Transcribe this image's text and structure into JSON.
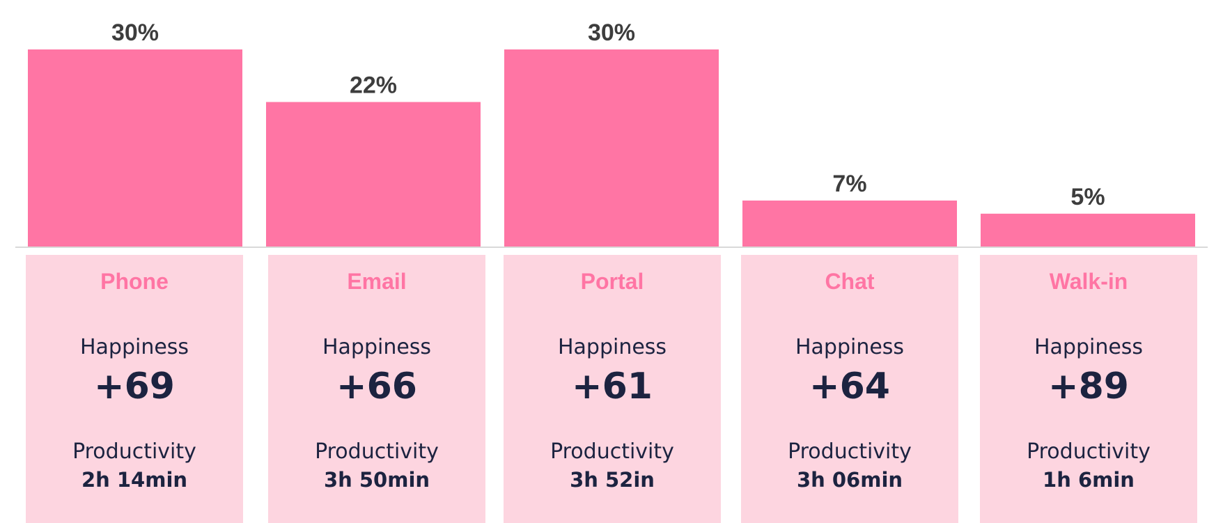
{
  "colors": {
    "bar": "#ff75a4",
    "card_bg": "#fdd5e0",
    "card_title": "#ff75a4",
    "value_label": "#3d3d3d",
    "metric_text": "#1c2340",
    "baseline": "#d9d9d9"
  },
  "chart_data": {
    "type": "bar",
    "categories": [
      "Phone",
      "Email",
      "Portal",
      "Chat",
      "Walk-in"
    ],
    "values": [
      30,
      22,
      30,
      7,
      5
    ],
    "value_labels": [
      "30%",
      "22%",
      "30%",
      "7%",
      "5%"
    ],
    "unit": "%",
    "ylim": [
      0,
      30
    ],
    "grid": false,
    "legend": "none"
  },
  "cards": [
    {
      "name": "Phone",
      "happiness_label": "Happiness",
      "happiness_value": "+69",
      "productivity_label": "Productivity",
      "productivity_value": "2h 14min"
    },
    {
      "name": "Email",
      "happiness_label": "Happiness",
      "happiness_value": "+66",
      "productivity_label": "Productivity",
      "productivity_value": "3h 50min"
    },
    {
      "name": "Portal",
      "happiness_label": "Happiness",
      "happiness_value": "+61",
      "productivity_label": "Productivity",
      "productivity_value": "3h 52in"
    },
    {
      "name": "Chat",
      "happiness_label": "Happiness",
      "happiness_value": "+64",
      "productivity_label": "Productivity",
      "productivity_value": "3h 06min"
    },
    {
      "name": "Walk-in",
      "happiness_label": "Happiness",
      "happiness_value": "+89",
      "productivity_label": "Productivity",
      "productivity_value": "1h 6min"
    }
  ]
}
